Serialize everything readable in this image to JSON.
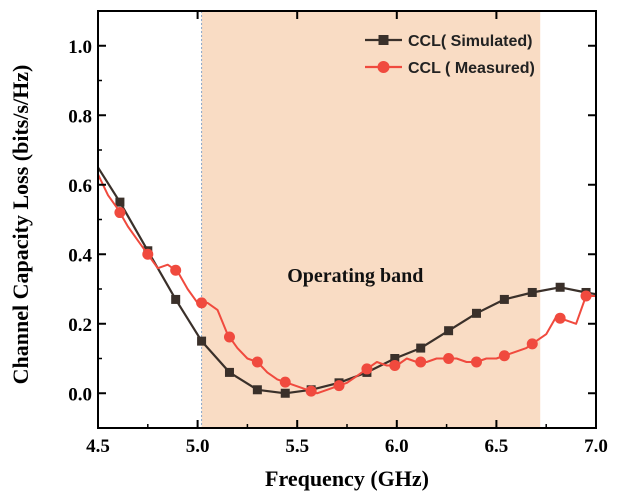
{
  "chart_data": {
    "type": "line",
    "xlabel": "Frequency (GHz)",
    "ylabel": "Channel Capacity Loss (bits/s/Hz)",
    "xlim": [
      4.5,
      7.0
    ],
    "ylim": [
      -0.1,
      1.1
    ],
    "xticks": [
      "4.5",
      "5.0",
      "5.5",
      "6.0",
      "6.5",
      "7.0"
    ],
    "yticks": [
      "0.0",
      "0.2",
      "0.4",
      "0.6",
      "0.8",
      "1.0"
    ],
    "grid": false,
    "legend_position": "top-right",
    "shaded_band": {
      "x_start": 5.02,
      "x_end": 6.72,
      "color": "#f9dcc4",
      "label": "Operating band"
    },
    "series": [
      {
        "name": "CCL( Simulated)",
        "color": "#3a302a",
        "marker": "square",
        "x": [
          4.5,
          4.61,
          4.75,
          4.89,
          5.02,
          5.16,
          5.3,
          5.44,
          5.57,
          5.71,
          5.85,
          5.99,
          6.12,
          6.26,
          6.4,
          6.54,
          6.68,
          6.82,
          6.95,
          7.0
        ],
        "y": [
          0.65,
          0.55,
          0.41,
          0.27,
          0.15,
          0.06,
          0.01,
          0.0,
          0.01,
          0.03,
          0.06,
          0.1,
          0.13,
          0.18,
          0.23,
          0.27,
          0.29,
          0.305,
          0.29,
          0.285
        ],
        "marker_x": [
          4.61,
          4.75,
          4.89,
          5.02,
          5.16,
          5.3,
          5.44,
          5.57,
          5.71,
          5.85,
          5.99,
          6.12,
          6.26,
          6.4,
          6.54,
          6.68,
          6.82,
          6.95
        ]
      },
      {
        "name": "CCL ( Measured)",
        "color": "#f04a3e",
        "marker": "circle",
        "x": [
          4.5,
          4.55,
          4.6,
          4.65,
          4.7,
          4.75,
          4.8,
          4.85,
          4.9,
          4.95,
          5.0,
          5.05,
          5.1,
          5.15,
          5.2,
          5.25,
          5.3,
          5.35,
          5.4,
          5.45,
          5.5,
          5.55,
          5.6,
          5.65,
          5.7,
          5.75,
          5.8,
          5.85,
          5.9,
          5.95,
          6.0,
          6.05,
          6.1,
          6.15,
          6.2,
          6.25,
          6.3,
          6.35,
          6.4,
          6.45,
          6.5,
          6.55,
          6.6,
          6.65,
          6.7,
          6.75,
          6.8,
          6.85,
          6.9,
          6.95,
          7.0
        ],
        "y": [
          0.63,
          0.57,
          0.53,
          0.48,
          0.44,
          0.4,
          0.36,
          0.37,
          0.35,
          0.3,
          0.26,
          0.26,
          0.24,
          0.17,
          0.13,
          0.1,
          0.09,
          0.06,
          0.04,
          0.03,
          0.02,
          0.01,
          0.0,
          0.01,
          0.02,
          0.03,
          0.05,
          0.07,
          0.09,
          0.08,
          0.08,
          0.1,
          0.09,
          0.09,
          0.1,
          0.1,
          0.1,
          0.09,
          0.09,
          0.1,
          0.1,
          0.11,
          0.12,
          0.13,
          0.15,
          0.17,
          0.22,
          0.21,
          0.2,
          0.28,
          0.28
        ],
        "marker_x": [
          4.61,
          4.75,
          4.89,
          5.02,
          5.16,
          5.3,
          5.44,
          5.57,
          5.71,
          5.85,
          5.99,
          6.12,
          6.26,
          6.4,
          6.54,
          6.68,
          6.82,
          6.95
        ]
      }
    ]
  }
}
